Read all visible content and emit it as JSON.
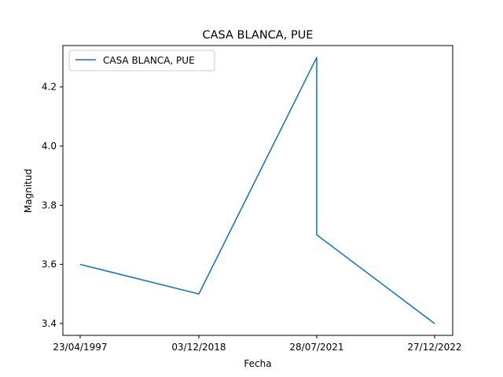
{
  "chart_data": {
    "type": "line",
    "title": "CASA BLANCA, PUE",
    "xlabel": "Fecha",
    "ylabel": "Magnitud",
    "categories": [
      "23/04/1997",
      "03/12/2018",
      "28/07/2021",
      "28/07/2021",
      "27/12/2022"
    ],
    "x_ticks": [
      "23/04/1997",
      "03/12/2018",
      "28/07/2021",
      "27/12/2022"
    ],
    "series": [
      {
        "name": "CASA BLANCA, PUE",
        "color": "#1f77b4",
        "values": [
          3.6,
          3.5,
          4.3,
          3.7,
          3.4
        ]
      }
    ],
    "ylim": [
      3.36,
      4.34
    ],
    "y_ticks": [
      3.4,
      3.6,
      3.8,
      4.0,
      4.2
    ],
    "y_tick_labels": [
      "3.4",
      "3.6",
      "3.8",
      "4.0",
      "4.2"
    ],
    "grid": false,
    "legend_position": "top-left"
  }
}
